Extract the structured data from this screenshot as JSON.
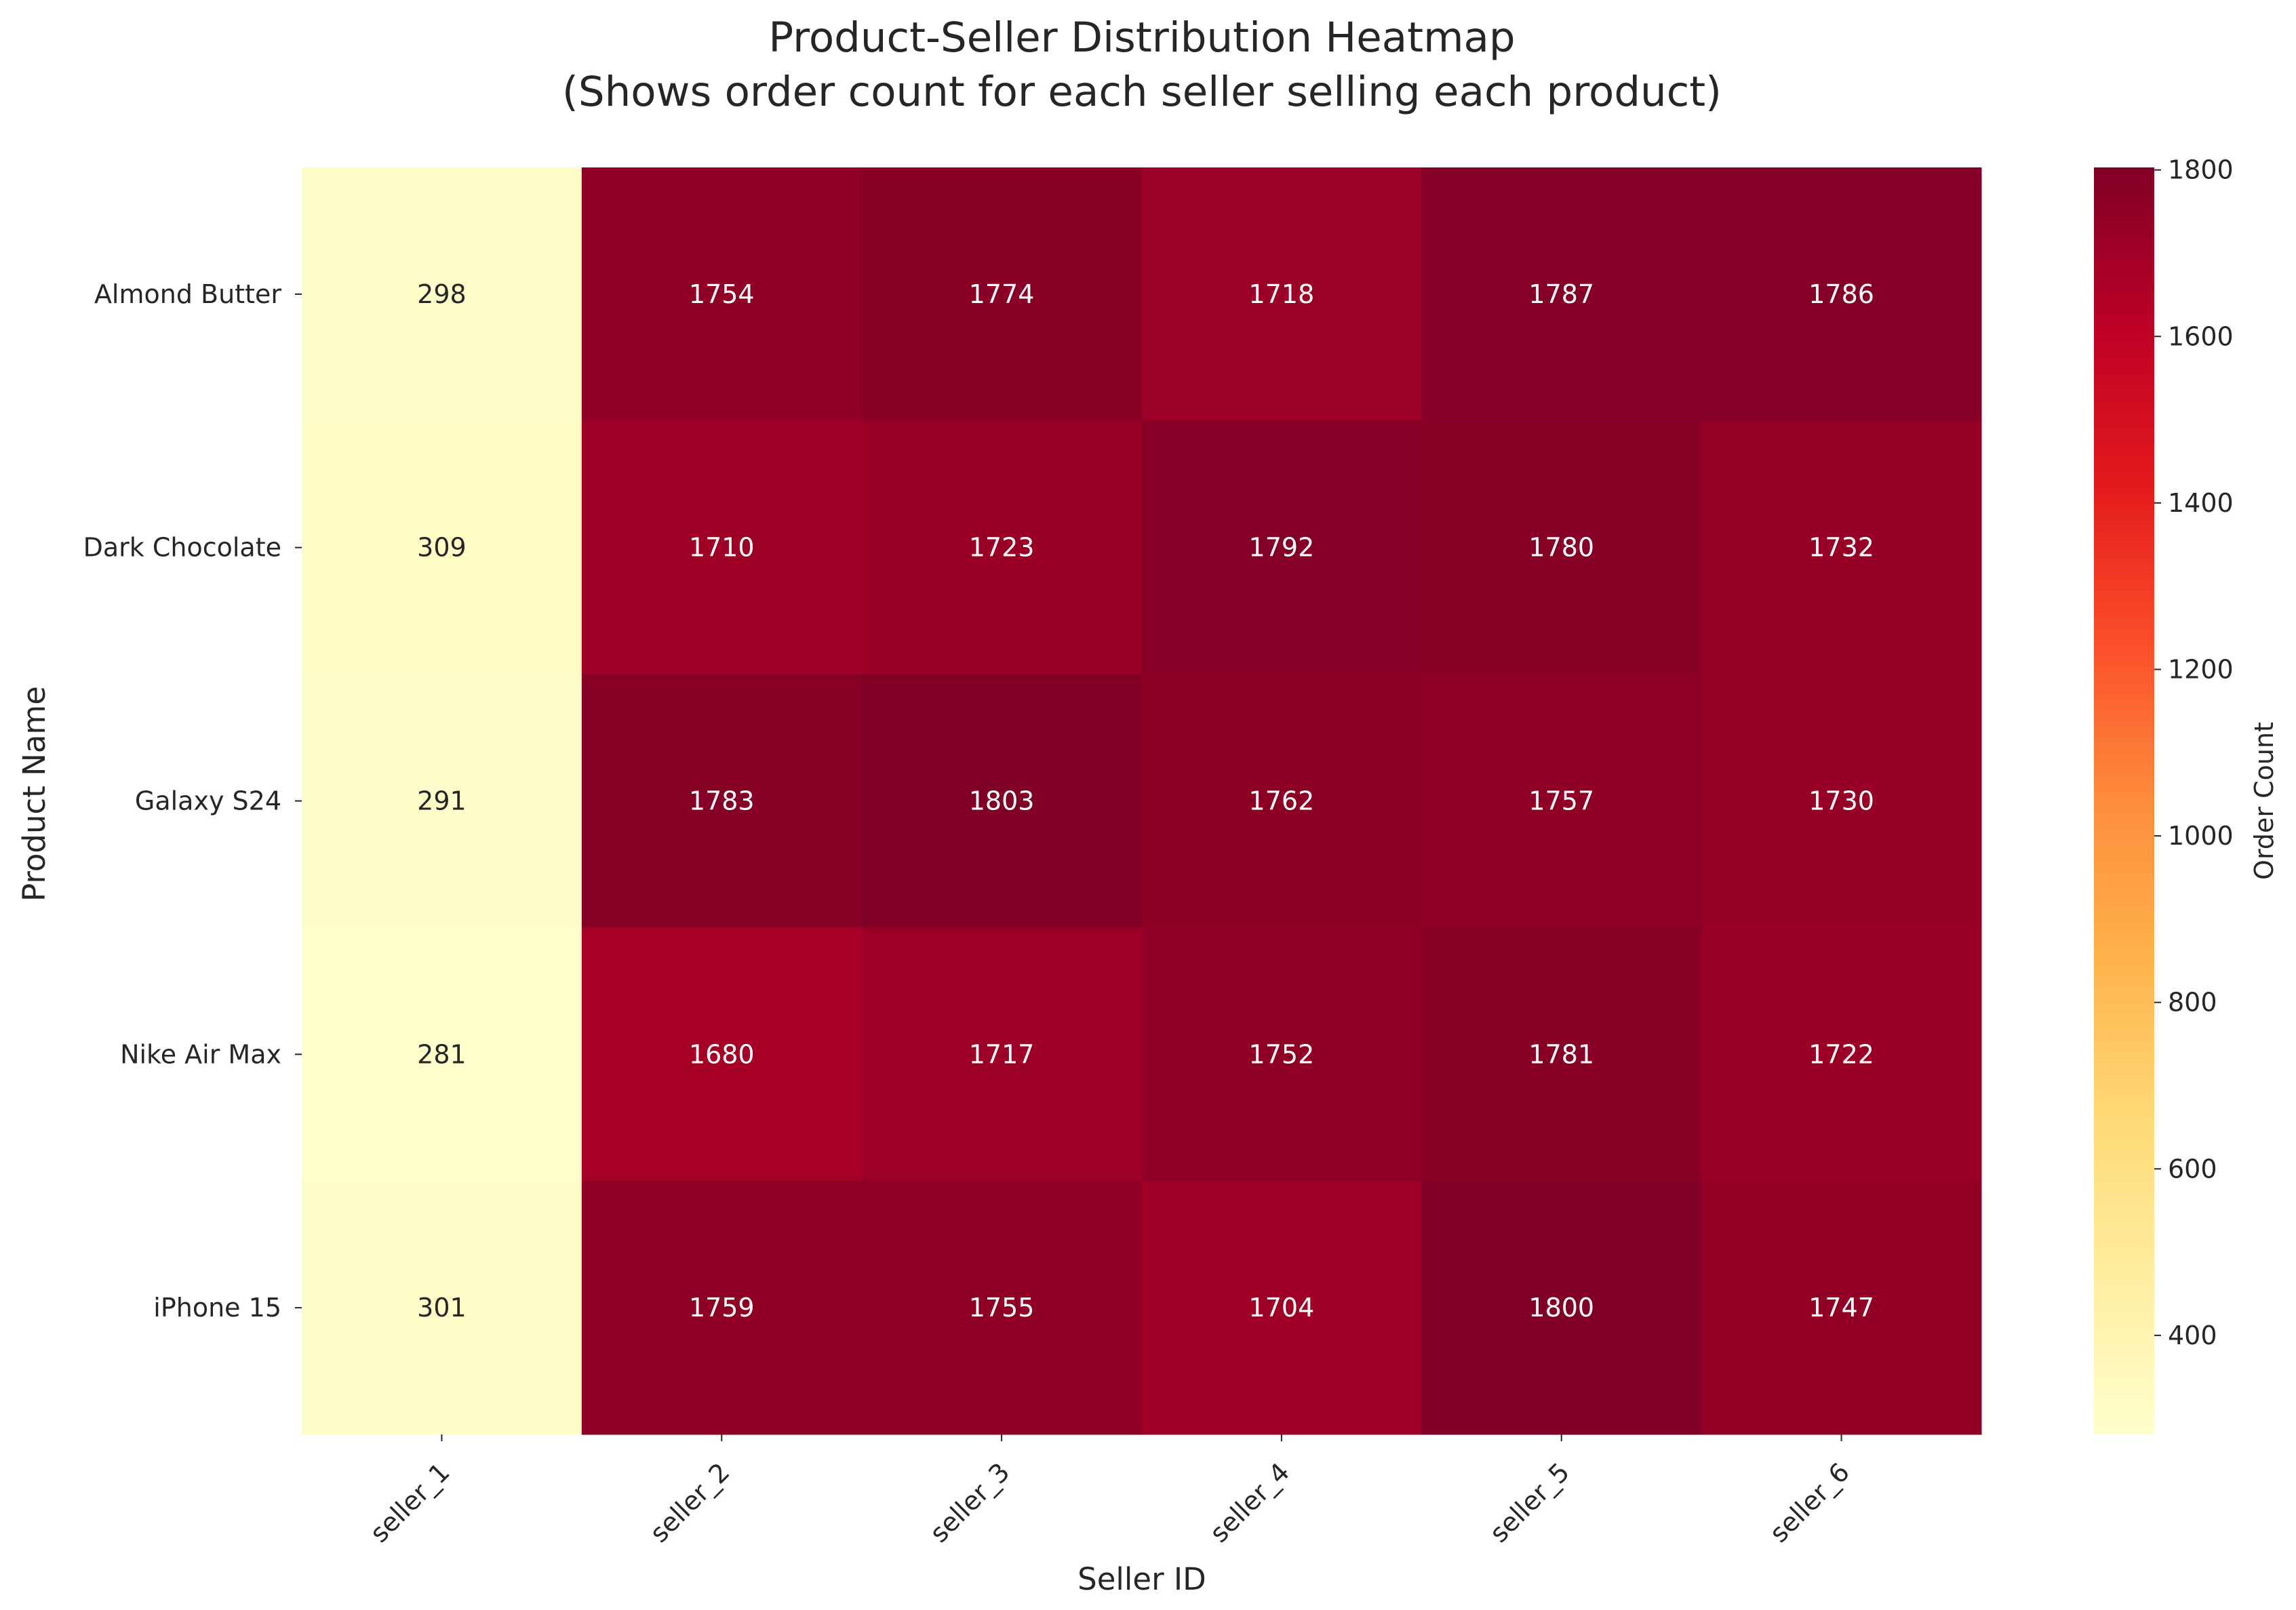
{
  "chart_data": {
    "type": "heatmap",
    "title_lines": [
      "Product-Seller Distribution Heatmap",
      "(Shows order count for each seller selling each product)"
    ],
    "xlabel": "Seller ID",
    "ylabel": "Product Name",
    "x_categories": [
      "seller_1",
      "seller_2",
      "seller_3",
      "seller_4",
      "seller_5",
      "seller_6"
    ],
    "y_categories": [
      "Almond Butter",
      "Dark Chocolate",
      "Galaxy S24",
      "Nike Air Max",
      "iPhone 15"
    ],
    "values": [
      [
        298,
        1754,
        1774,
        1718,
        1787,
        1786
      ],
      [
        309,
        1710,
        1723,
        1792,
        1780,
        1732
      ],
      [
        291,
        1783,
        1803,
        1762,
        1757,
        1730
      ],
      [
        281,
        1680,
        1717,
        1752,
        1781,
        1722
      ],
      [
        301,
        1759,
        1755,
        1704,
        1800,
        1747
      ]
    ],
    "colorbar": {
      "label": "Order Count",
      "vmin": 281,
      "vmax": 1803,
      "ticks": [
        400,
        600,
        800,
        1000,
        1200,
        1400,
        1600,
        1800
      ],
      "colormap": "YlOrRd"
    },
    "annotations_shown": true,
    "grid": false
  }
}
